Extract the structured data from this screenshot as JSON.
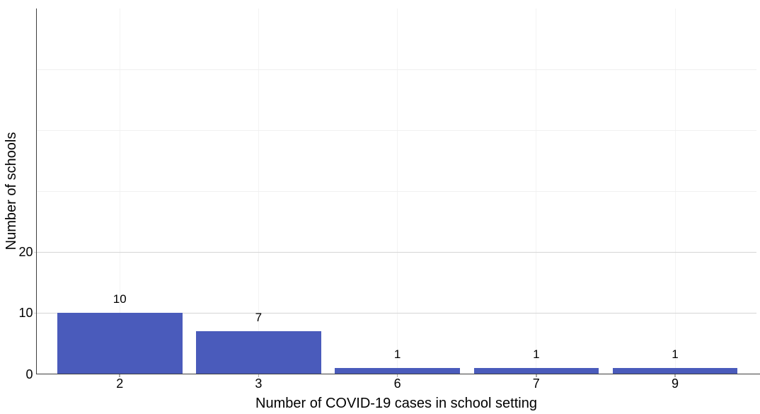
{
  "chart_data": {
    "type": "bar",
    "title": "",
    "categories": [
      "2",
      "3",
      "6",
      "7",
      "9"
    ],
    "values": [
      10,
      7,
      1,
      1,
      1
    ],
    "bar_value_labels": [
      "10",
      "7",
      "1",
      "1",
      "1"
    ],
    "xlabel": "Number of COVID-19 cases in school setting",
    "ylabel": "Number of schools",
    "y_ticks": [
      0,
      10,
      20
    ],
    "y_tick_labels": [
      "0",
      "10",
      "20"
    ],
    "ylim": [
      0,
      60
    ],
    "gridlines_major": [
      10,
      20
    ],
    "gridlines_faint": [
      30,
      40,
      50
    ],
    "grid": "horizontal-major-with-faint-vertical-at-categories",
    "legend": "none",
    "bar_width_fraction": 0.9,
    "colors": {
      "bar": "#4a5bbb",
      "grid_major": "#d5d5d5",
      "grid_faint": "#f0f0f0",
      "grid_vertical": "#f3f3f3",
      "axis": "#3f3f3f",
      "tick": "#a8a8a8",
      "text": "#000000",
      "background": "#ffffff"
    }
  }
}
